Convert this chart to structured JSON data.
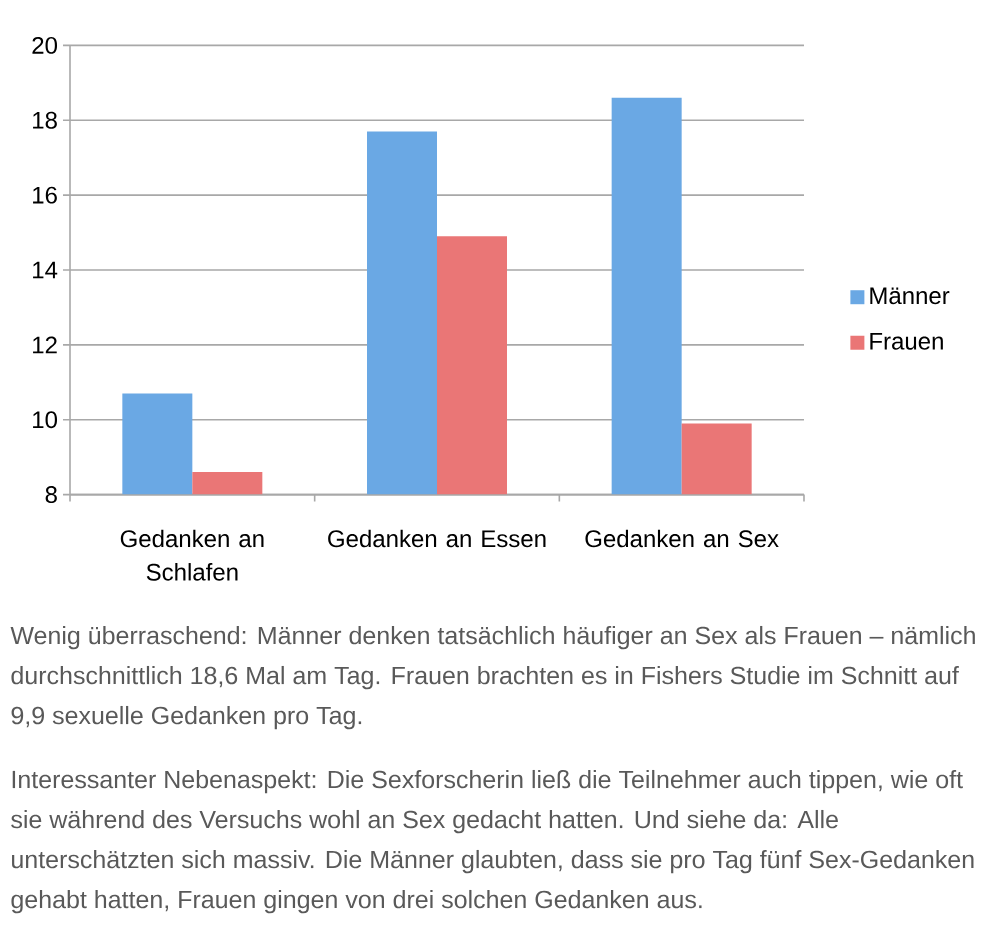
{
  "chart_data": {
    "type": "bar",
    "categories": [
      "Gedanken an Schlafen",
      "Gedanken an Essen",
      "Gedanken an Sex"
    ],
    "series": [
      {
        "name": "Männer",
        "color": "#6aa8e4",
        "values": [
          10.7,
          17.7,
          18.6
        ]
      },
      {
        "name": "Frauen",
        "color": "#ea7676",
        "values": [
          8.6,
          14.9,
          9.9
        ]
      }
    ],
    "ylim": [
      8,
      20
    ],
    "yticks": [
      8,
      10,
      12,
      14,
      16,
      18,
      20
    ],
    "grid": "y",
    "legend": "right",
    "annotations": [
      "Wenig überraschend: Männer denken tatsächlich häufiger an Sex als Frauen – nämlich durchschnittlich 18,6 Mal am Tag. Frauen brachten es in Fishers Studie im Schnitt auf 9,9 sexuelle Gedanken pro Tag.",
      "Interessanter Nebenaspekt: Die Sexforscherin ließ die Teilnehmer auch tippen, wie oft sie während des Versuchs wohl an Sex gedacht hatten. Und siehe da: Alle unterschätzten sich massiv. Die Männer glaubten, dass sie pro Tag fünf Sex-Gedanken gehabt hatten, Frauen gingen von drei solchen Gedanken aus."
    ]
  }
}
